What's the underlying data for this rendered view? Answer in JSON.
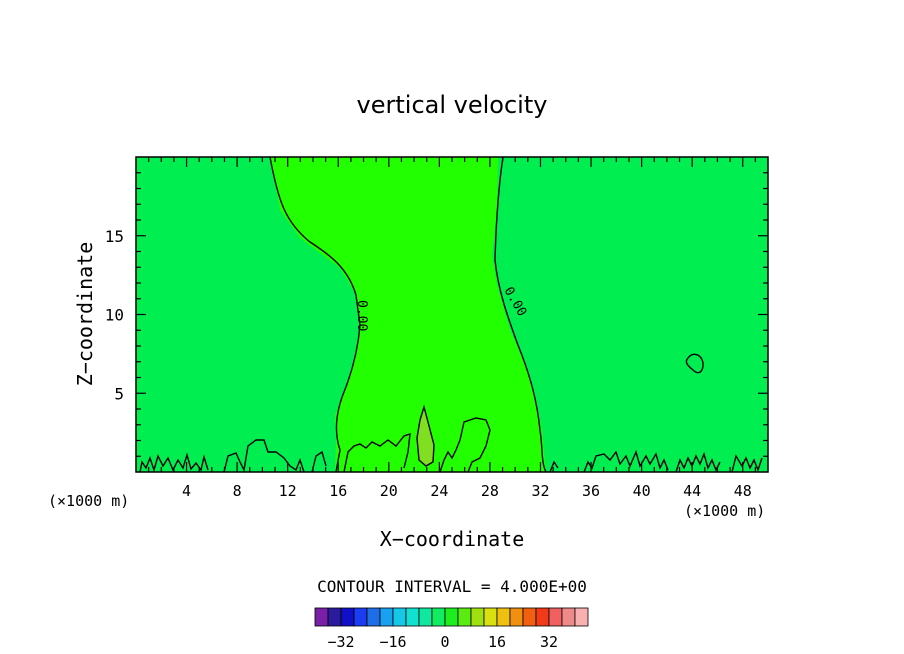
{
  "chart_data": {
    "type": "contour",
    "title": "vertical velocity",
    "xlabel": "X−coordinate",
    "ylabel": "Z−coordinate",
    "x_unit_left": "(×1000 m)",
    "x_unit_right": "(×1000 m)",
    "xlim": [
      0,
      50
    ],
    "ylim": [
      0,
      20
    ],
    "x_ticks": [
      4,
      8,
      12,
      16,
      20,
      24,
      28,
      32,
      36,
      40,
      44,
      48
    ],
    "y_ticks": [
      5,
      10,
      15
    ],
    "contour_label": "0.00",
    "contour_interval_text": "CONTOUR INTERVAL = 4.000E+00",
    "colorbar": {
      "colors": [
        "#7a1fa8",
        "#2a1a9c",
        "#1010c8",
        "#1b3cf0",
        "#1e6ee8",
        "#1aa0f0",
        "#16c8e8",
        "#12e0d0",
        "#10e8a0",
        "#12ec60",
        "#1eee1e",
        "#5aec10",
        "#a0e010",
        "#d8e010",
        "#f0c010",
        "#f09010",
        "#f06010",
        "#f03a18",
        "#f06060",
        "#f08a8a",
        "#f8b0b0"
      ],
      "tick_labels": [
        "−32",
        "−16",
        "0",
        "16",
        "32"
      ],
      "tick_values": [
        -32,
        -16,
        0,
        16,
        32
      ]
    },
    "fill_colors": {
      "background": "#00ee50",
      "plume": "#22ff00",
      "core": "#7fdf20"
    }
  }
}
